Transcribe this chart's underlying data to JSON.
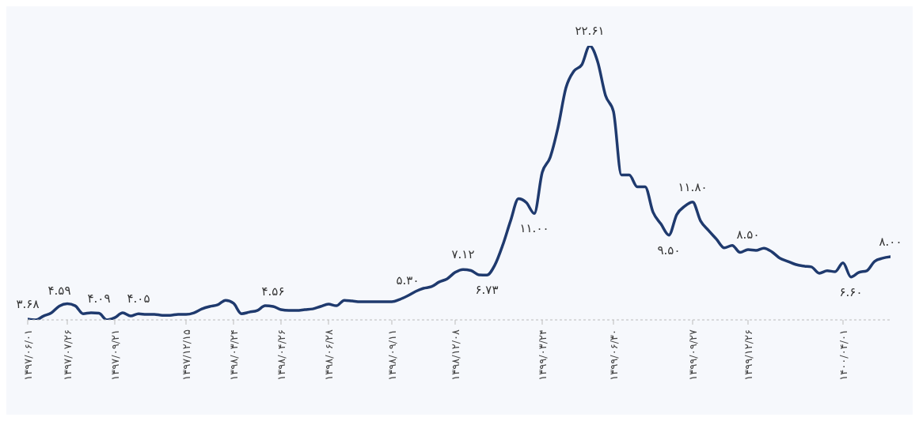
{
  "chart_data": {
    "type": "line",
    "categories": [
      "۱۳۹۷/۰۶/۰۱",
      null,
      null,
      null,
      null,
      "۱۳۹۷/۰۷/۲۶",
      null,
      null,
      null,
      null,
      null,
      "۱۳۹۷/۰۹/۲۱",
      null,
      null,
      null,
      null,
      null,
      null,
      null,
      null,
      "۱۳۹۷/۱۲/۱۵",
      null,
      null,
      null,
      null,
      null,
      "۱۳۹۸/۰۳/۲۴",
      null,
      null,
      null,
      null,
      null,
      "۱۳۹۸/۰۴/۲۶",
      null,
      null,
      null,
      null,
      null,
      "۱۳۹۸/۰۶/۲۸",
      null,
      null,
      null,
      null,
      null,
      null,
      null,
      "۱۳۹۸/۰۹/۱۱",
      null,
      null,
      null,
      null,
      null,
      null,
      null,
      "۱۳۹۸/۱۲/۰۸",
      null,
      null,
      null,
      null,
      null,
      null,
      null,
      null,
      null,
      null,
      "۱۳۹۹/۰۳/۲۴",
      null,
      null,
      null,
      null,
      null,
      null,
      null,
      null,
      "۱۳۹۹/۰۶/۳۰",
      null,
      null,
      null,
      null,
      null,
      null,
      null,
      null,
      null,
      "۱۳۹۹/۰۹/۲۷",
      null,
      null,
      null,
      null,
      null,
      null,
      "۱۳۹۹/۱۲/۲۶",
      null,
      null,
      null,
      null,
      null,
      null,
      null,
      null,
      null,
      null,
      null,
      "۱۴۰۰/۰۴/۰۱",
      null,
      null,
      null,
      null,
      null,
      null
    ],
    "series": [
      {
        "color": "#1f3a6e",
        "values": [
          3.68,
          3.63,
          3.9,
          4.12,
          4.59,
          4.75,
          4.61,
          4.06,
          4.12,
          4.09,
          3.63,
          3.79,
          4.12,
          3.9,
          4.05,
          4.01,
          4.01,
          3.95,
          3.95,
          4.01,
          4.01,
          4.12,
          4.39,
          4.56,
          4.67,
          4.99,
          4.78,
          4.06,
          4.17,
          4.28,
          4.61,
          4.56,
          4.34,
          4.28,
          4.28,
          4.34,
          4.39,
          4.56,
          4.72,
          4.61,
          4.99,
          4.94,
          4.89,
          4.89,
          4.89,
          4.89,
          4.89,
          5.05,
          5.3,
          5.6,
          5.82,
          5.93,
          6.26,
          6.48,
          6.92,
          7.12,
          7.05,
          6.75,
          6.73,
          7.41,
          8.79,
          10.49,
          12.02,
          11.75,
          11.0,
          13.84,
          14.88,
          16.97,
          19.71,
          20.86,
          21.3,
          22.61,
          21.52,
          19.16,
          18.06,
          13.67,
          13.67,
          12.85,
          12.85,
          11.09,
          10.27,
          9.5,
          10.93,
          11.5,
          11.8,
          10.49,
          9.83,
          9.23,
          8.62,
          8.79,
          8.3,
          8.5,
          8.45,
          8.6,
          8.35,
          7.91,
          7.69,
          7.47,
          7.36,
          7.3,
          6.86,
          7.03,
          6.97,
          7.58,
          6.6,
          6.92,
          7.03,
          7.69,
          7.9,
          8.0
        ],
        "value_labels": [
          "۳.۶۸",
          null,
          null,
          null,
          "۴.۵۹",
          null,
          null,
          null,
          null,
          "۴.۰۹",
          null,
          null,
          null,
          null,
          "۴.۰۵",
          null,
          null,
          null,
          null,
          null,
          null,
          null,
          null,
          null,
          null,
          null,
          null,
          null,
          null,
          null,
          null,
          "۴.۵۶",
          null,
          null,
          null,
          null,
          null,
          null,
          null,
          null,
          null,
          null,
          null,
          null,
          null,
          null,
          null,
          null,
          "۵.۳۰",
          null,
          null,
          null,
          null,
          null,
          null,
          "۷.۱۲",
          null,
          null,
          "۶.۷۳",
          null,
          null,
          null,
          null,
          null,
          "۱۱.۰۰",
          null,
          null,
          null,
          null,
          null,
          null,
          "۲۲.۶۱",
          null,
          null,
          null,
          null,
          null,
          null,
          null,
          null,
          null,
          "۹.۵۰",
          null,
          null,
          "۱۱.۸۰",
          null,
          null,
          null,
          null,
          null,
          null,
          "۸.۵۰",
          null,
          null,
          null,
          null,
          null,
          null,
          null,
          null,
          null,
          null,
          null,
          null,
          "۶.۶۰",
          null,
          null,
          null,
          null,
          "۸.۰۰"
        ]
      }
    ],
    "tick_labels": "x",
    "grid": false,
    "legend": false,
    "marker": "none",
    "line_style": "solid"
  }
}
